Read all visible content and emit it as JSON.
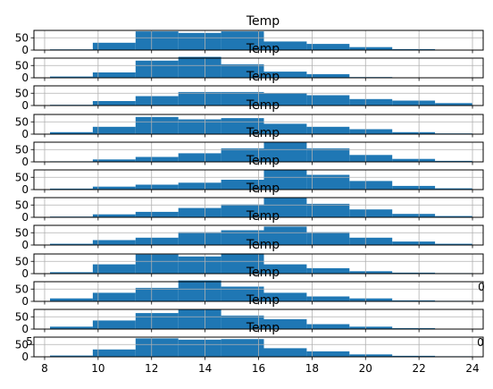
{
  "chart_data": {
    "type": "bar",
    "subplot_count": 12,
    "grid": true,
    "bar_color": "#1f77b4",
    "grid_color": "#b0b0b0",
    "xlim": [
      7.6,
      24.4
    ],
    "x_ticks": [
      8,
      10,
      12,
      14,
      16,
      18,
      20,
      22,
      24
    ],
    "y_ticks": [
      0,
      50
    ],
    "ylim": [
      0,
      80
    ],
    "bin_edges": [
      8.2,
      9.8,
      11.4,
      13.0,
      14.6,
      16.2,
      17.8,
      19.4,
      21.0,
      22.6,
      24.0
    ],
    "panels": [
      {
        "title": "Temp",
        "bins": [
          [
            8.2,
            9.8,
            3
          ],
          [
            9.8,
            11.4,
            30
          ],
          [
            11.4,
            13.0,
            76
          ],
          [
            13.0,
            14.6,
            70
          ],
          [
            14.6,
            16.2,
            76
          ],
          [
            16.2,
            17.8,
            35
          ],
          [
            17.8,
            19.4,
            25
          ],
          [
            19.4,
            21.0,
            12
          ],
          [
            21.0,
            22.6,
            4
          ],
          [
            22.6,
            24.0,
            2
          ]
        ]
      },
      {
        "title": "Temp",
        "bins": [
          [
            8.2,
            9.8,
            5
          ],
          [
            9.8,
            11.4,
            22
          ],
          [
            11.4,
            13.0,
            70
          ],
          [
            13.0,
            14.6,
            85
          ],
          [
            14.6,
            16.2,
            55
          ],
          [
            16.2,
            17.8,
            25
          ],
          [
            17.8,
            19.4,
            15
          ],
          [
            19.4,
            21.0,
            3
          ]
        ]
      },
      {
        "title": "Temp",
        "bins": [
          [
            8.2,
            9.8,
            3
          ],
          [
            9.8,
            11.4,
            18
          ],
          [
            11.4,
            13.0,
            38
          ],
          [
            13.0,
            14.6,
            55
          ],
          [
            14.6,
            16.2,
            55
          ],
          [
            16.2,
            17.8,
            50
          ],
          [
            17.8,
            19.4,
            42
          ],
          [
            19.4,
            21.0,
            26
          ],
          [
            21.0,
            22.6,
            20
          ],
          [
            22.6,
            24.0,
            10
          ]
        ]
      },
      {
        "title": "Temp",
        "bins": [
          [
            8.2,
            9.8,
            8
          ],
          [
            9.8,
            11.4,
            30
          ],
          [
            11.4,
            13.0,
            70
          ],
          [
            13.0,
            14.6,
            60
          ],
          [
            14.6,
            16.2,
            65
          ],
          [
            16.2,
            17.8,
            42
          ],
          [
            17.8,
            19.4,
            30
          ],
          [
            19.4,
            21.0,
            20
          ],
          [
            21.0,
            22.6,
            8
          ],
          [
            22.6,
            24.0,
            3
          ]
        ]
      },
      {
        "title": "Temp",
        "bins": [
          [
            8.2,
            9.8,
            2
          ],
          [
            9.8,
            11.4,
            10
          ],
          [
            11.4,
            13.0,
            20
          ],
          [
            13.0,
            14.6,
            35
          ],
          [
            14.6,
            16.2,
            55
          ],
          [
            16.2,
            17.8,
            80
          ],
          [
            17.8,
            19.4,
            55
          ],
          [
            19.4,
            21.0,
            28
          ],
          [
            21.0,
            22.6,
            12
          ],
          [
            22.6,
            24.0,
            4
          ]
        ]
      },
      {
        "title": "Temp",
        "bins": [
          [
            8.2,
            9.8,
            4
          ],
          [
            9.8,
            11.4,
            12
          ],
          [
            11.4,
            13.0,
            20
          ],
          [
            13.0,
            14.6,
            28
          ],
          [
            14.6,
            16.2,
            40
          ],
          [
            16.2,
            17.8,
            80
          ],
          [
            17.8,
            19.4,
            60
          ],
          [
            19.4,
            21.0,
            35
          ],
          [
            21.0,
            22.6,
            15
          ],
          [
            22.6,
            24.0,
            5
          ]
        ]
      },
      {
        "title": "Temp",
        "bins": [
          [
            8.2,
            9.8,
            3
          ],
          [
            9.8,
            11.4,
            12
          ],
          [
            11.4,
            13.0,
            22
          ],
          [
            13.0,
            14.6,
            38
          ],
          [
            14.6,
            16.2,
            52
          ],
          [
            16.2,
            17.8,
            80
          ],
          [
            17.8,
            19.4,
            55
          ],
          [
            19.4,
            21.0,
            32
          ],
          [
            21.0,
            22.6,
            14
          ],
          [
            22.6,
            24.0,
            5
          ]
        ]
      },
      {
        "title": "Temp",
        "bins": [
          [
            8.2,
            9.8,
            5
          ],
          [
            9.8,
            11.4,
            20
          ],
          [
            11.4,
            13.0,
            30
          ],
          [
            13.0,
            14.6,
            52
          ],
          [
            14.6,
            16.2,
            60
          ],
          [
            16.2,
            17.8,
            75
          ],
          [
            17.8,
            19.4,
            52
          ],
          [
            19.4,
            21.0,
            30
          ],
          [
            21.0,
            22.6,
            14
          ],
          [
            22.6,
            24.0,
            5
          ]
        ]
      },
      {
        "title": "Temp",
        "bins": [
          [
            8.2,
            9.8,
            6
          ],
          [
            9.8,
            11.4,
            38
          ],
          [
            11.4,
            13.0,
            78
          ],
          [
            13.0,
            14.6,
            70
          ],
          [
            14.6,
            16.2,
            82
          ],
          [
            16.2,
            17.8,
            38
          ],
          [
            17.8,
            19.4,
            22
          ],
          [
            19.4,
            21.0,
            10
          ],
          [
            21.0,
            22.6,
            4
          ],
          [
            22.6,
            24.0,
            2
          ]
        ]
      },
      {
        "title": "Temp",
        "bins": [
          [
            8.2,
            9.8,
            12
          ],
          [
            9.8,
            11.4,
            35
          ],
          [
            11.4,
            13.0,
            55
          ],
          [
            13.0,
            14.6,
            85
          ],
          [
            14.6,
            16.2,
            60
          ],
          [
            16.2,
            17.8,
            35
          ],
          [
            17.8,
            19.4,
            20
          ],
          [
            19.4,
            21.0,
            12
          ],
          [
            21.0,
            22.6,
            4
          ],
          [
            22.6,
            24.0,
            2
          ]
        ]
      },
      {
        "title": "Temp",
        "bins": [
          [
            8.2,
            9.8,
            10
          ],
          [
            9.8,
            11.4,
            35
          ],
          [
            11.4,
            13.0,
            65
          ],
          [
            13.0,
            14.6,
            80
          ],
          [
            14.6,
            16.2,
            55
          ],
          [
            16.2,
            17.8,
            40
          ],
          [
            17.8,
            19.4,
            20
          ],
          [
            19.4,
            21.0,
            10
          ],
          [
            21.0,
            22.6,
            4
          ],
          [
            22.6,
            24.0,
            1
          ]
        ]
      },
      {
        "title": "Temp",
        "bins": [
          [
            8.2,
            9.8,
            5
          ],
          [
            9.8,
            11.4,
            30
          ],
          [
            11.4,
            13.0,
            75
          ],
          [
            13.0,
            14.6,
            70
          ],
          [
            14.6,
            16.2,
            72
          ],
          [
            16.2,
            17.8,
            35
          ],
          [
            17.8,
            19.4,
            22
          ],
          [
            19.4,
            21.0,
            10
          ],
          [
            21.0,
            22.6,
            4
          ],
          [
            22.6,
            24.0,
            2
          ]
        ]
      }
    ],
    "bottom_tick_labels": [
      "8",
      "10",
      "12",
      "14",
      "16",
      "18",
      "20",
      "22",
      "24"
    ],
    "overlap_fragments": [
      {
        "text": "0",
        "panel": 9
      },
      {
        "text": "5",
        "panel": 11
      },
      {
        "text": "0",
        "panel": 11
      }
    ]
  }
}
